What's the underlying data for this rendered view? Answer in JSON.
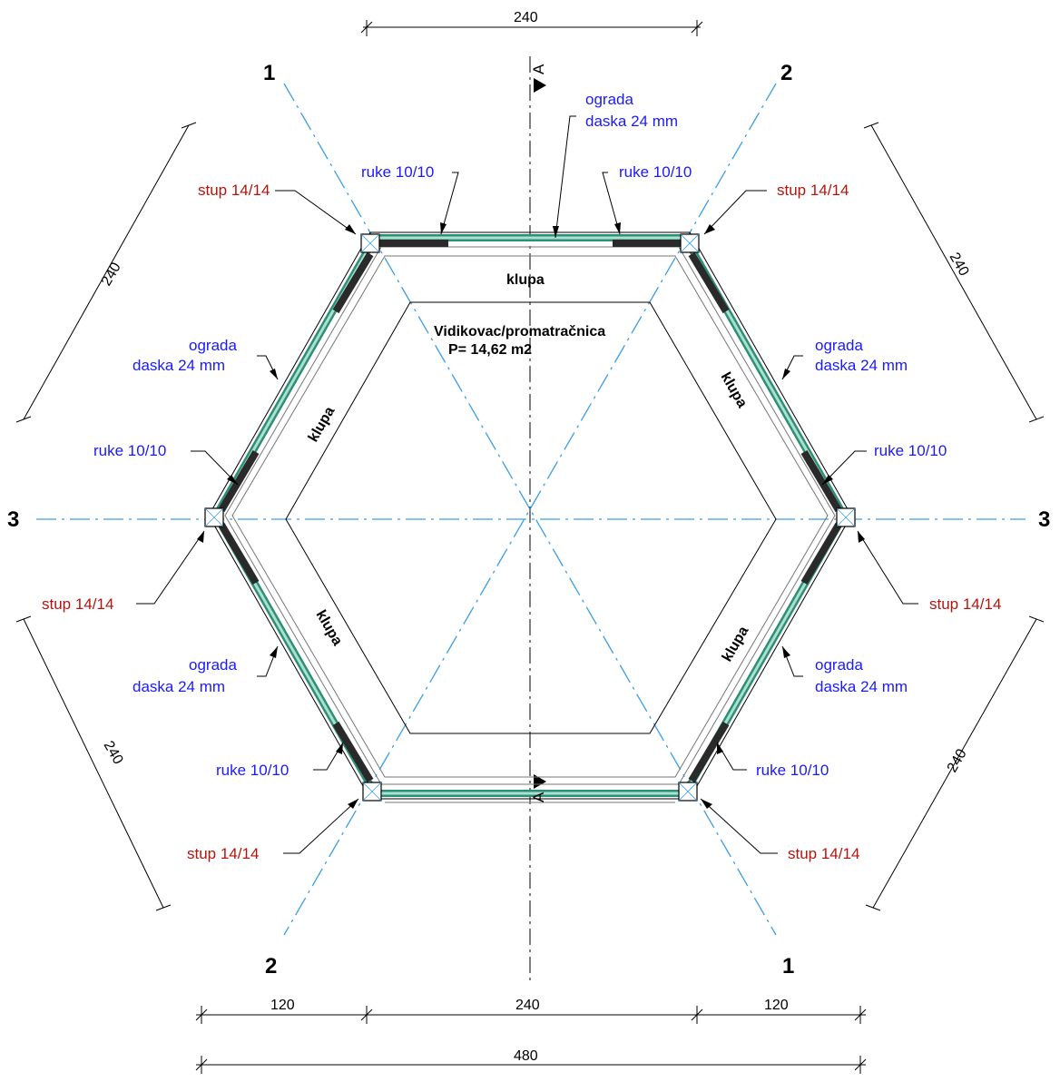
{
  "axes": [
    {
      "id": "1",
      "label": "1"
    },
    {
      "id": "2",
      "label": "2"
    },
    {
      "id": "3",
      "label": "3"
    }
  ],
  "section": {
    "label": "A"
  },
  "room": {
    "name": "Vidikovac/promatračnica",
    "area": "P= 14,62 m2"
  },
  "benches": {
    "label": "klupa"
  },
  "labels": {
    "post": "stup 14/14",
    "arm": "ruke 10/10",
    "fence_line1": "ograda",
    "fence_line2": "daska 24 mm"
  },
  "dimensions": {
    "top": "240",
    "upper_left": "240",
    "upper_right": "240",
    "lower_left": "240",
    "lower_right": "240",
    "bottom_left": "120",
    "bottom_mid": "240",
    "bottom_right": "120",
    "bottom_total": "480"
  },
  "colors": {
    "axis": "#3a9ee6",
    "fence": "#2f8f76",
    "label_blue": "#1a1aff",
    "label_red": "#b3140e"
  }
}
